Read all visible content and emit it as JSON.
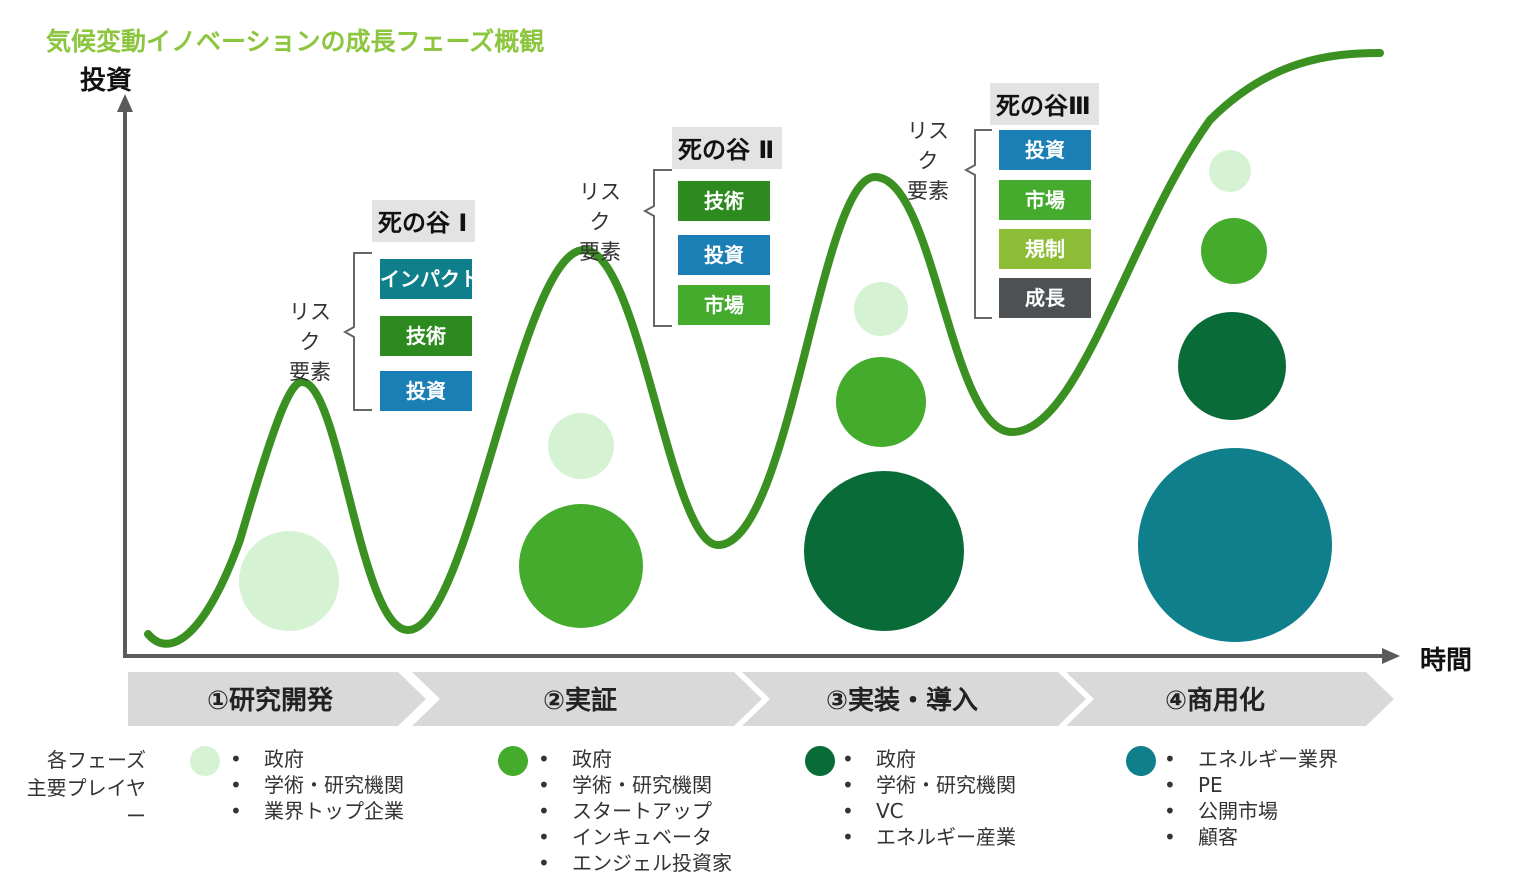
{
  "title": "気候変動イノベーションの成長フェーズ概観",
  "axes": {
    "y_label": "投資",
    "x_label": "時間"
  },
  "colors": {
    "light_green": "#d5f2d2",
    "mid_green": "#44ab2d",
    "dark_green": "#086b38",
    "teal": "#107f8c",
    "curve": "#3a9121",
    "title": "#8cc63f"
  },
  "valleys": [
    {
      "title": "死の谷 Ⅰ",
      "risk_label": "リスク\n要素",
      "risks": [
        {
          "label": "インパクト",
          "color": "#107f8c"
        },
        {
          "label": "技術",
          "color": "#2d8a1f"
        },
        {
          "label": "投資",
          "color": "#1a7fb5"
        }
      ]
    },
    {
      "title": "死の谷 Ⅱ",
      "risk_label": "リスク\n要素",
      "risks": [
        {
          "label": "技術",
          "color": "#2d8a1f"
        },
        {
          "label": "投資",
          "color": "#1a7fb5"
        },
        {
          "label": "市場",
          "color": "#44ab2d"
        }
      ]
    },
    {
      "title": "死の谷Ⅲ",
      "risk_label": "リスク\n要素",
      "risks": [
        {
          "label": "投資",
          "color": "#1a7fb5"
        },
        {
          "label": "市場",
          "color": "#44ab2d"
        },
        {
          "label": "規制",
          "color": "#8dbc36"
        },
        {
          "label": "成長",
          "color": "#4d5154"
        }
      ]
    }
  ],
  "phases": [
    {
      "label": "①研究開発",
      "bubble_color": "#d5f2d2",
      "players": [
        "政府",
        "学術・研究機関",
        "業界トップ企業"
      ]
    },
    {
      "label": "②実証",
      "bubble_color": "#44ab2d",
      "players": [
        "政府",
        "学術・研究機関",
        "スタートアップ",
        "インキュベータ",
        "エンジェル投資家"
      ]
    },
    {
      "label": "③実装・導入",
      "bubble_color": "#086b38",
      "players": [
        "政府",
        "学術・研究機関",
        "VC",
        "エネルギー産業"
      ]
    },
    {
      "label": "④商用化",
      "bubble_color": "#107f8c",
      "players": [
        "エネルギー業界",
        "PE",
        "公開市場",
        "顧客"
      ]
    }
  ],
  "players_header": "各フェーズ\n主要プレイヤー"
}
